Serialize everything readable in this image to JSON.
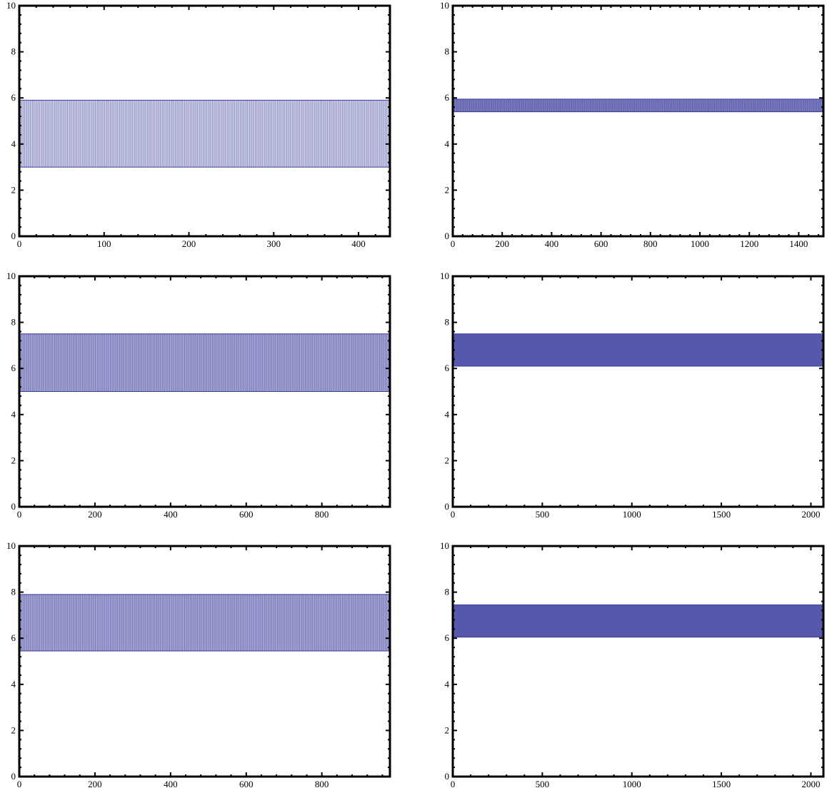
{
  "figure": {
    "band_color": "#3a3c9c",
    "frame_color": "#000000"
  },
  "chart_data": [
    {
      "type": "line",
      "panel": "top-left",
      "xlim": [
        0,
        437
      ],
      "ylim": [
        0,
        10
      ],
      "xticks": [
        0,
        100,
        200,
        300,
        400
      ],
      "yticks": [
        0,
        2,
        4,
        6,
        8,
        10
      ],
      "series": [
        {
          "x": [
            0,
            437
          ],
          "y_low": 3.0,
          "y_high": 5.9
        }
      ],
      "density": 0.42,
      "grid": false
    },
    {
      "type": "line",
      "panel": "top-right",
      "xlim": [
        0,
        1500
      ],
      "ylim": [
        0,
        10
      ],
      "xticks": [
        0,
        200,
        400,
        600,
        800,
        1000,
        1200,
        1400
      ],
      "yticks": [
        0,
        2,
        4,
        6,
        8,
        10
      ],
      "series": [
        {
          "x": [
            0,
            1500
          ],
          "y_low": 5.4,
          "y_high": 5.95
        }
      ],
      "density": 0.8,
      "grid": false
    },
    {
      "type": "line",
      "panel": "middle-left",
      "xlim": [
        0,
        980
      ],
      "ylim": [
        0,
        10
      ],
      "xticks": [
        0,
        200,
        400,
        600,
        800
      ],
      "yticks": [
        0,
        2,
        4,
        6,
        8,
        10
      ],
      "series": [
        {
          "x": [
            0,
            980
          ],
          "y_low": 5.0,
          "y_high": 7.5
        }
      ],
      "density": 0.62,
      "grid": false
    },
    {
      "type": "line",
      "panel": "middle-right",
      "xlim": [
        0,
        2070
      ],
      "ylim": [
        0,
        10
      ],
      "xticks": [
        0,
        500,
        1000,
        1500,
        2000
      ],
      "yticks": [
        0,
        2,
        4,
        6,
        8,
        10
      ],
      "series": [
        {
          "x": [
            0,
            2070
          ],
          "y_low": 6.1,
          "y_high": 7.5
        }
      ],
      "density": 0.9,
      "grid": false
    },
    {
      "type": "line",
      "panel": "bottom-left",
      "xlim": [
        0,
        980
      ],
      "ylim": [
        0,
        10
      ],
      "xticks": [
        0,
        200,
        400,
        600,
        800
      ],
      "yticks": [
        0,
        2,
        4,
        6,
        8,
        10
      ],
      "series": [
        {
          "x": [
            0,
            980
          ],
          "y_low": 5.45,
          "y_high": 7.9
        }
      ],
      "density": 0.62,
      "grid": false
    },
    {
      "type": "line",
      "panel": "bottom-right",
      "xlim": [
        0,
        2070
      ],
      "ylim": [
        0,
        10
      ],
      "xticks": [
        0,
        500,
        1000,
        1500,
        2000
      ],
      "yticks": [
        0,
        2,
        4,
        6,
        8,
        10
      ],
      "series": [
        {
          "x": [
            0,
            2070
          ],
          "y_low": 6.05,
          "y_high": 7.45
        }
      ],
      "density": 0.9,
      "grid": false
    }
  ]
}
